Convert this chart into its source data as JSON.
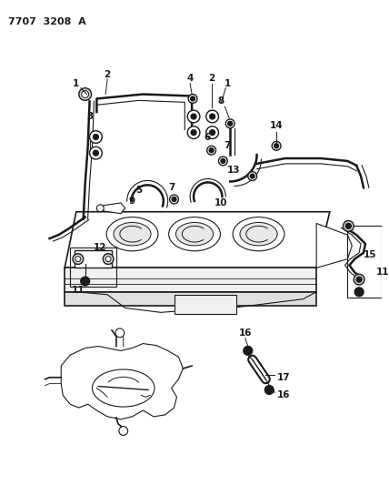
{
  "title": "7707  3208  A",
  "background_color": "#ffffff",
  "line_color": "#1a1a1a",
  "figsize": [
    4.28,
    5.33
  ],
  "dpi": 100
}
